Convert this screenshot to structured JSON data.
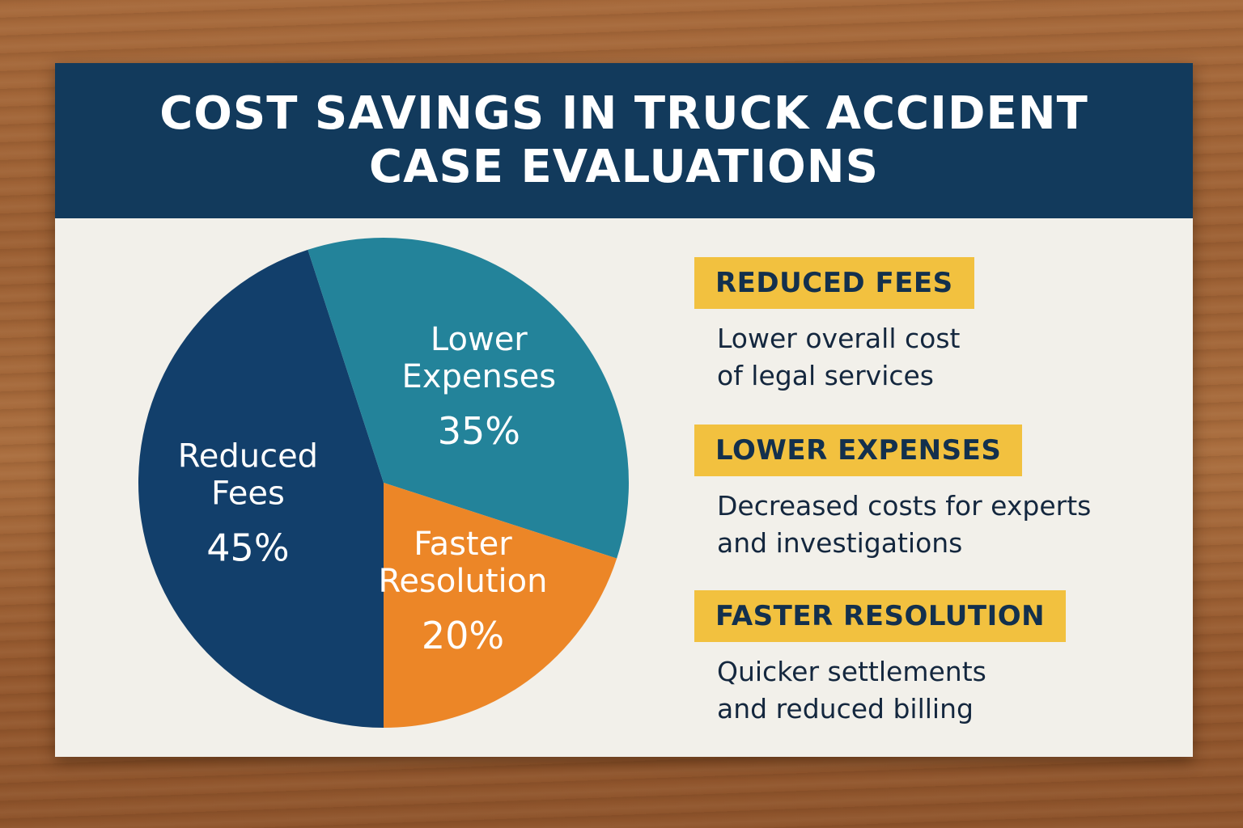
{
  "title": "COST SAVINGS IN TRUCK ACCIDENT CASE EVALUATIONS",
  "colors": {
    "header": "#123a5c",
    "card": "#f2f0ea",
    "tag": "#f2c13f",
    "reduced_fees": "#123f6b",
    "lower_expenses": "#23839a",
    "faster_resolution": "#ec8627"
  },
  "chart_data": {
    "type": "pie",
    "title": "",
    "slices": [
      {
        "label_lines": [
          "Reduced",
          "Fees"
        ],
        "value": 45,
        "value_label": "45%",
        "color": "#123f6b"
      },
      {
        "label_lines": [
          "Lower",
          "Expenses"
        ],
        "value": 35,
        "value_label": "35%",
        "color": "#23839a"
      },
      {
        "label_lines": [
          "Faster",
          "Resolution"
        ],
        "value": 20,
        "value_label": "20%",
        "color": "#ec8627"
      }
    ]
  },
  "legend": [
    {
      "tag": "REDUCED FEES",
      "desc_lines": [
        "Lower overall cost",
        "of legal services"
      ]
    },
    {
      "tag": "LOWER EXPENSES",
      "desc_lines": [
        "Decreased costs for experts",
        "and investigations"
      ]
    },
    {
      "tag": "FASTER RESOLUTION",
      "desc_lines": [
        "Quicker settlements",
        "and reduced billing"
      ]
    }
  ]
}
